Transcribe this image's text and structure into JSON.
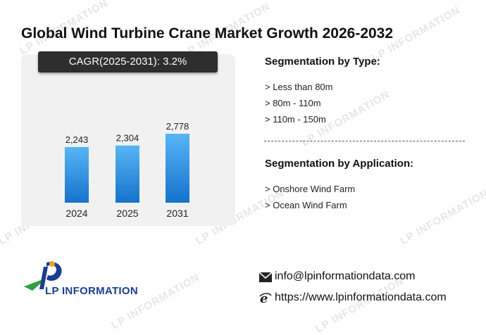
{
  "title": "Global Wind Turbine Crane Market Growth 2026-2032",
  "cagr_label": "CAGR(2025-2031):  3.2%",
  "watermark_text": "LP INFORMATION",
  "chart_data": {
    "type": "bar",
    "categories": [
      "2024",
      "2025",
      "2031"
    ],
    "values": [
      2243,
      2304,
      2778
    ],
    "value_labels": [
      "2,243",
      "2,304",
      "2,778"
    ],
    "bar_color_top": "#58b5f5",
    "bar_color_bottom": "#1572cc"
  },
  "segmentation_type": {
    "heading": "Segmentation by Type:",
    "items": [
      "> Less than 80m",
      "> 80m - 110m",
      "> 110m - 150m"
    ]
  },
  "segmentation_application": {
    "heading": "Segmentation by Application:",
    "items": [
      "> Onshore Wind Farm",
      "> Ocean Wind Farm"
    ]
  },
  "logo": {
    "text": "LP INFORMATION",
    "icon": "lp-logo-icon"
  },
  "contact": {
    "email": "info@lpinformationdata.com",
    "website": "https://www.lpinformationdata.com",
    "email_icon": "envelope-icon",
    "website_icon": "browser-e-icon"
  }
}
